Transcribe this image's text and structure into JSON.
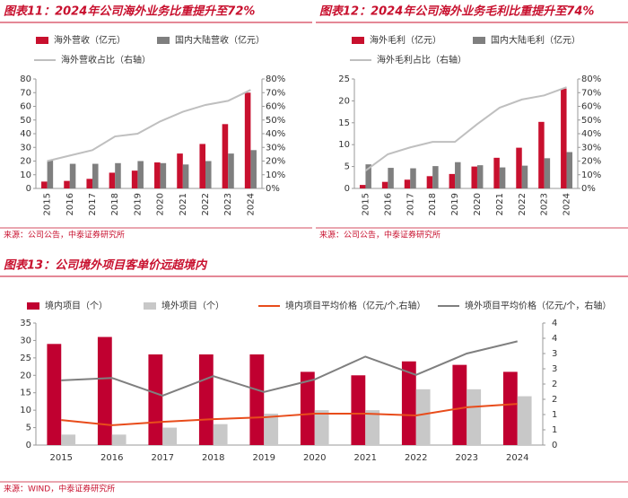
{
  "chart_data": [
    {
      "type": "bar",
      "title": "图表11：2024年公司海外业务比重提升至72%",
      "source": "来源：公司公告，中泰证券研究所",
      "categories": [
        "2015",
        "2016",
        "2017",
        "2018",
        "2019",
        "2020",
        "2021",
        "2022",
        "2023",
        "2024"
      ],
      "series": [
        {
          "name": "海外营收（亿元）",
          "type": "bar",
          "color": "#c8102e",
          "values": [
            5,
            5.5,
            7,
            11.5,
            13,
            19,
            25.5,
            32.5,
            47,
            70
          ]
        },
        {
          "name": "国内大陆营收（亿元）",
          "type": "bar",
          "color": "#7f7f7f",
          "values": [
            20.5,
            18,
            18,
            18.5,
            20,
            18.5,
            17.5,
            20,
            25.5,
            28
          ]
        },
        {
          "name": "海外营收占比（右轴）",
          "type": "line",
          "axis": "y2",
          "color": "#bfbfbf",
          "values": [
            20,
            24,
            28,
            38,
            40,
            49,
            56,
            61,
            64,
            72
          ]
        }
      ],
      "ylim": [
        0,
        80
      ],
      "yticks": [
        0,
        10,
        20,
        30,
        40,
        50,
        60,
        70,
        80
      ],
      "y2lim": [
        0,
        80
      ],
      "y2ticks": [
        {
          "value": 0,
          "label": "0%"
        },
        {
          "value": 10,
          "label": "10%"
        },
        {
          "value": 20,
          "label": "20%"
        },
        {
          "value": 30,
          "label": "30%"
        },
        {
          "value": 40,
          "label": "40%"
        },
        {
          "value": 50,
          "label": "50%"
        },
        {
          "value": 60,
          "label": "60%"
        },
        {
          "value": 70,
          "label": "70%"
        },
        {
          "value": 80,
          "label": "80%"
        }
      ]
    },
    {
      "type": "bar",
      "title": "图表12：2024年公司海外业务毛利比重提升至74%",
      "source": "来源：公司公告，中泰证券研究所",
      "categories": [
        "2015",
        "2016",
        "2017",
        "2018",
        "2019",
        "2020",
        "2021",
        "2022",
        "2023",
        "2024"
      ],
      "series": [
        {
          "name": "海外毛利（亿元）",
          "type": "bar",
          "color": "#c8102e",
          "values": [
            0.8,
            1.5,
            2,
            2.8,
            3.3,
            5,
            7,
            9.3,
            15.2,
            22.8
          ]
        },
        {
          "name": "国内大陆毛利（亿元）",
          "type": "bar",
          "color": "#7f7f7f",
          "values": [
            5.5,
            4.7,
            4.6,
            5.1,
            6,
            5.3,
            4.8,
            5.2,
            6.9,
            8.3
          ]
        },
        {
          "name": "海外毛利占比（右轴）",
          "type": "line",
          "axis": "y2",
          "color": "#bfbfbf",
          "values": [
            13,
            25,
            30,
            34,
            34,
            47,
            59,
            65,
            68,
            74
          ]
        }
      ],
      "ylim": [
        0,
        25
      ],
      "yticks": [
        0,
        5,
        10,
        15,
        20,
        25
      ],
      "y2lim": [
        0,
        80
      ],
      "y2ticks": [
        {
          "value": 0,
          "label": "0%"
        },
        {
          "value": 10,
          "label": "10%"
        },
        {
          "value": 20,
          "label": "20%"
        },
        {
          "value": 30,
          "label": "30%"
        },
        {
          "value": 40,
          "label": "40%"
        },
        {
          "value": 50,
          "label": "50%"
        },
        {
          "value": 60,
          "label": "60%"
        },
        {
          "value": 70,
          "label": "70%"
        },
        {
          "value": 80,
          "label": "80%"
        }
      ]
    },
    {
      "type": "bar",
      "title": "图表13：公司境外项目客单价远超境内",
      "source": "来源：WIND，中泰证券研究所",
      "categories": [
        "2015",
        "2016",
        "2017",
        "2018",
        "2019",
        "2020",
        "2021",
        "2022",
        "2023",
        "2024"
      ],
      "series": [
        {
          "name": "境内项目（个）",
          "type": "bar",
          "color": "#c00030",
          "values": [
            29,
            31,
            26,
            26,
            26,
            21,
            20,
            24,
            23,
            21
          ]
        },
        {
          "name": "境外项目（个）",
          "type": "bar",
          "color": "#c8c8c8",
          "values": [
            3,
            3,
            5,
            6,
            9,
            10,
            10,
            16,
            16,
            14
          ]
        },
        {
          "name": "境内项目平均价格（亿元/个,右轴）",
          "type": "line",
          "axis": "y2",
          "color": "#e84c1b",
          "values": [
            0.82,
            0.65,
            0.76,
            0.85,
            0.91,
            1.03,
            1.03,
            0.97,
            1.24,
            1.35
          ]
        },
        {
          "name": "境外项目平均价格（亿元/个，右轴）",
          "type": "line",
          "axis": "y2",
          "color": "#7f7f7f",
          "values": [
            2.12,
            2.2,
            1.62,
            2.26,
            1.74,
            2.15,
            2.9,
            2.3,
            3.0,
            3.4
          ]
        }
      ],
      "ylim": [
        0,
        35
      ],
      "yticks": [
        0,
        5,
        10,
        15,
        20,
        25,
        30,
        35
      ],
      "y2lim": [
        0,
        4
      ],
      "y2ticks": [
        0,
        {
          "value": 0.5,
          "label": "1"
        },
        1,
        {
          "value": 1.5,
          "label": "2"
        },
        2,
        {
          "value": 2.5,
          "label": "3"
        },
        3,
        {
          "value": 3.5,
          "label": "4"
        },
        4
      ]
    }
  ]
}
